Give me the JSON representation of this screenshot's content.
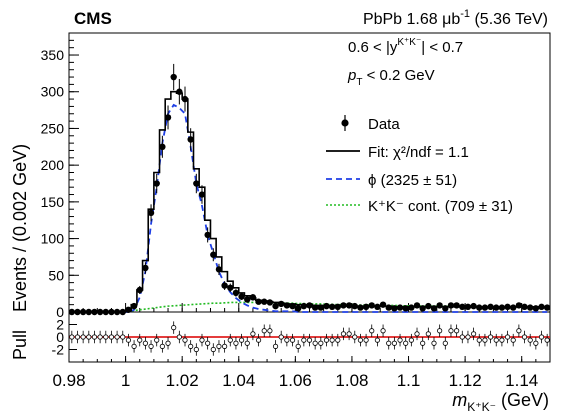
{
  "header": {
    "experiment": "CMS",
    "dataset_prefix": "PbPb 1.68 μb",
    "lumi_exp": "-1",
    "energy": "(5.36 TeV)"
  },
  "selection": {
    "rapidity_cut_left": "0.6 < |y",
    "rapidity_sup": "K⁺K⁻",
    "rapidity_cut_right": "| < 0.7",
    "pt_symbol": "p",
    "pt_sub": "T",
    "pt_cut": "< 0.2 GeV"
  },
  "legend": {
    "data": "Data",
    "fit": "Fit: χ²/ndf = 1.1",
    "phi": "ϕ (2325 ± 51)",
    "kk_cont": "K⁺K⁻ cont. (709 ± 31)"
  },
  "axes": {
    "ylabel_main": "Events / (0.002 GeV)",
    "ylabel_pull": "Pull",
    "xlabel_main": "m",
    "xlabel_sub": "K⁺K⁻",
    "xlabel_unit": " (GeV)"
  },
  "colors": {
    "data": "#000000",
    "fit": "#000000",
    "phi": "#1f3fe6",
    "kk_cont": "#22bb22",
    "pull_zero": "#e02020"
  },
  "chart_data": {
    "type": "line",
    "xlim": [
      0.98,
      1.15
    ],
    "ylim": [
      0,
      380
    ],
    "pull_ylim": [
      -4,
      4
    ],
    "x_ticks": [
      "0.98",
      "1",
      "1.02",
      "1.04",
      "1.06",
      "1.08",
      "1.1",
      "1.12",
      "1.14"
    ],
    "y_ticks": [
      "0",
      "50",
      "100",
      "150",
      "200",
      "250",
      "300",
      "350"
    ],
    "pull_ticks": [
      "2",
      "0",
      "-2"
    ],
    "x": [
      0.981,
      0.983,
      0.985,
      0.987,
      0.989,
      0.991,
      0.993,
      0.995,
      0.997,
      0.999,
      1.001,
      1.003,
      1.005,
      1.007,
      1.009,
      1.011,
      1.013,
      1.015,
      1.017,
      1.019,
      1.021,
      1.023,
      1.025,
      1.027,
      1.029,
      1.031,
      1.033,
      1.035,
      1.037,
      1.039,
      1.041,
      1.043,
      1.045,
      1.047,
      1.049,
      1.051,
      1.053,
      1.055,
      1.057,
      1.059,
      1.061,
      1.063,
      1.065,
      1.067,
      1.069,
      1.071,
      1.073,
      1.075,
      1.077,
      1.079,
      1.081,
      1.083,
      1.085,
      1.087,
      1.089,
      1.091,
      1.093,
      1.095,
      1.097,
      1.099,
      1.101,
      1.103,
      1.105,
      1.107,
      1.109,
      1.111,
      1.113,
      1.115,
      1.117,
      1.119,
      1.121,
      1.123,
      1.125,
      1.127,
      1.129,
      1.131,
      1.133,
      1.135,
      1.137,
      1.139,
      1.141,
      1.143,
      1.145,
      1.147,
      1.149
    ],
    "series": [
      {
        "name": "Data",
        "values": [
          0,
          0,
          0,
          0,
          0,
          0,
          0,
          0,
          0,
          0,
          3,
          8,
          30,
          60,
          135,
          175,
          225,
          265,
          320,
          300,
          290,
          235,
          175,
          160,
          105,
          78,
          58,
          36,
          33,
          26,
          21,
          17,
          20,
          14,
          14,
          13,
          8,
          11,
          9,
          8,
          5,
          8,
          9,
          6,
          6,
          8,
          7,
          7,
          9,
          9,
          8,
          6,
          7,
          9,
          7,
          10,
          6,
          5,
          6,
          5,
          6,
          9,
          5,
          8,
          5,
          9,
          5,
          9,
          9,
          7,
          7,
          8,
          6,
          6,
          7,
          6,
          6,
          7,
          6,
          9,
          7,
          6,
          5,
          7,
          6
        ]
      },
      {
        "name": "Fit: χ²/ndf = 1.1",
        "values": [
          0,
          0,
          0,
          0,
          0,
          0,
          0,
          0,
          0,
          0,
          2,
          10,
          30,
          70,
          140,
          190,
          248,
          290,
          300,
          298,
          290,
          245,
          195,
          170,
          125,
          100,
          75,
          55,
          42,
          33,
          26,
          22,
          19,
          16,
          15,
          14,
          13,
          12,
          11,
          11,
          10,
          10,
          10,
          9,
          9,
          9,
          9,
          9,
          8,
          8,
          8,
          8,
          8,
          8,
          8,
          8,
          8,
          7,
          7,
          7,
          7,
          7,
          7,
          7,
          7,
          7,
          7,
          7,
          7,
          7,
          7,
          7,
          7,
          7,
          7,
          7,
          7,
          7,
          7,
          7,
          7,
          7,
          7,
          7,
          7
        ]
      },
      {
        "name": "ϕ (2325 ± 51)",
        "values": [
          0,
          0,
          0,
          0,
          0,
          0,
          0,
          0,
          0,
          0,
          0,
          3,
          20,
          55,
          120,
          170,
          230,
          270,
          282,
          278,
          270,
          225,
          175,
          145,
          105,
          80,
          55,
          38,
          27,
          19,
          13,
          9,
          6,
          4,
          3,
          2,
          1,
          1,
          1,
          1,
          0,
          0,
          0,
          0,
          0,
          0,
          0,
          0,
          0,
          0,
          0,
          0,
          0,
          0,
          0,
          0,
          0,
          0,
          0,
          0,
          0,
          0,
          0,
          0,
          0,
          0,
          0,
          0,
          0,
          0,
          0,
          0,
          0,
          0,
          0,
          0,
          0,
          0,
          0,
          0,
          0,
          0,
          0,
          0,
          0
        ]
      },
      {
        "name": "K⁺K⁻ cont. (709 ± 31)",
        "values": [
          0,
          0,
          0,
          0,
          0,
          0,
          0,
          0,
          0,
          0.5,
          1,
          2,
          3,
          4,
          5,
          6,
          7,
          8,
          8.5,
          9,
          9.5,
          10,
          10.5,
          11,
          11.5,
          12,
          12,
          12.5,
          13,
          13,
          13,
          13,
          13,
          13,
          13,
          12.5,
          12.5,
          12,
          12,
          12,
          11.5,
          11.5,
          11,
          11,
          11,
          10.5,
          10.5,
          10,
          10,
          10,
          10,
          9.5,
          9.5,
          9.5,
          9,
          9,
          9,
          9,
          8.5,
          8.5,
          8.5,
          8.5,
          8,
          8,
          8,
          8,
          8,
          8,
          7.5,
          7.5,
          7.5,
          7.5,
          7.5,
          7.5,
          7,
          7,
          7,
          7,
          7,
          7,
          7,
          7,
          7,
          7,
          7
        ]
      }
    ],
    "pull": [
      0,
      0,
      0,
      0,
      0,
      0,
      0,
      0,
      0,
      0,
      -0.5,
      -1.5,
      -0.5,
      -1,
      -1.5,
      -0.5,
      -1.5,
      -1,
      1.5,
      0,
      -0.5,
      -1.5,
      -2,
      -0.5,
      -1,
      -2,
      -1.5,
      -1.5,
      -0.5,
      -1,
      -0.5,
      -1,
      0.5,
      -0.5,
      1,
      1,
      -1.5,
      0,
      -0.5,
      -0.5,
      -1.5,
      -0.5,
      -0.5,
      -1,
      -1,
      -0.5,
      -0.5,
      -0.5,
      0.5,
      0.5,
      0,
      -0.5,
      -0.5,
      1,
      -0.5,
      1,
      -1,
      -1,
      -0.5,
      -1,
      -0.5,
      0.5,
      -1,
      0.5,
      -1,
      1,
      -1,
      1,
      1,
      0,
      0,
      0.5,
      -0.5,
      -0.5,
      0,
      -0.5,
      -0.5,
      0,
      -0.5,
      1,
      0,
      -0.5,
      -1,
      0,
      -0.5
    ]
  }
}
